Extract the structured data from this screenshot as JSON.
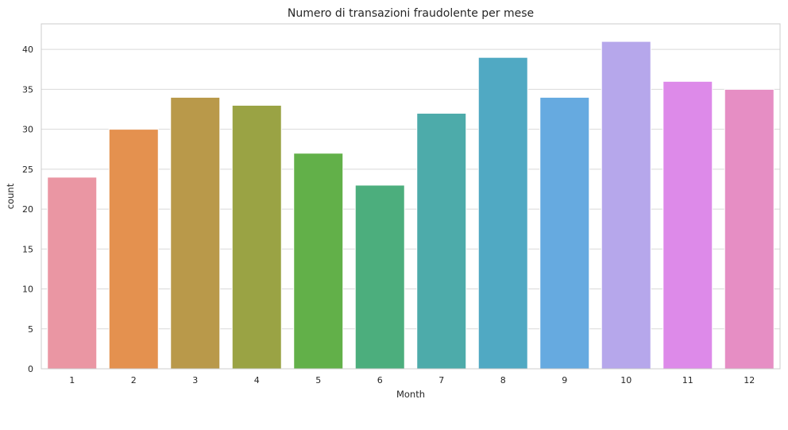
{
  "chart_data": {
    "type": "bar",
    "title": "Numero di transazioni fraudolente per mese",
    "xlabel": "Month",
    "ylabel": "count",
    "categories": [
      "1",
      "2",
      "3",
      "4",
      "5",
      "6",
      "7",
      "8",
      "9",
      "10",
      "11",
      "12"
    ],
    "values": [
      24,
      30,
      34,
      33,
      27,
      23,
      32,
      39,
      34,
      41,
      36,
      35
    ],
    "colors": [
      "#ea96a3",
      "#e4914f",
      "#b9994a",
      "#9aa344",
      "#62b049",
      "#4cae7d",
      "#4dabaa",
      "#50a9c3",
      "#66aae0",
      "#b6a7eb",
      "#dd8ae9",
      "#e68ec4"
    ],
    "ylim": [
      0,
      43.2
    ],
    "yticks": [
      0,
      5,
      10,
      15,
      20,
      25,
      30,
      35,
      40
    ],
    "grid": "y",
    "legend": "none"
  }
}
